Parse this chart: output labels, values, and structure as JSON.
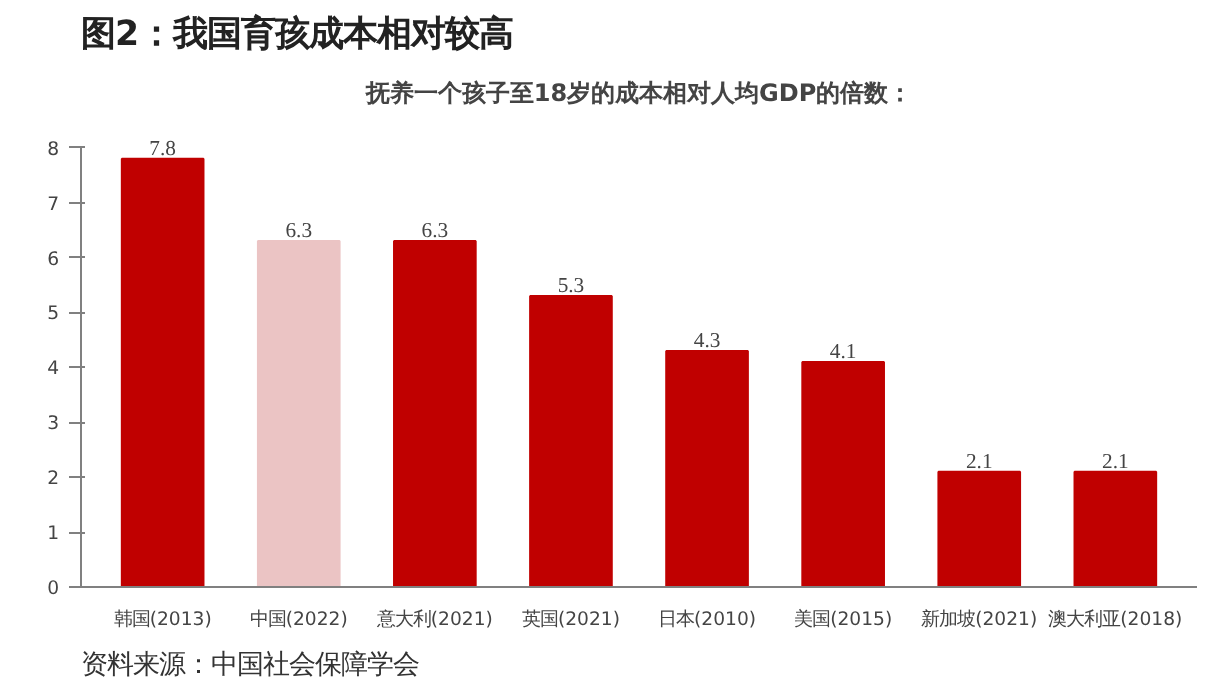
{
  "chart_data": {
    "type": "bar",
    "title": "图2：我国育孩成本相对较高",
    "subtitle": "抚养一个孩子至18岁的成本相对人均GDP的倍数：",
    "categories": [
      "韩国(2013)",
      "中国(2022)",
      "意大利(2021)",
      "英国(2021)",
      "日本(2010)",
      "美国(2015)",
      "新加坡(2021)",
      "澳大利亚(2018)"
    ],
    "values": [
      7.8,
      6.3,
      6.3,
      5.3,
      4.3,
      4.1,
      2.1,
      2.1
    ],
    "colors": [
      "#c00000",
      "#ebc4c4",
      "#c00000",
      "#c00000",
      "#c00000",
      "#c00000",
      "#c00000",
      "#c00000"
    ],
    "ylim": [
      0,
      8
    ],
    "yticks": [
      0,
      1,
      2,
      3,
      4,
      5,
      6,
      7,
      8
    ],
    "grid": false,
    "data_labels": true,
    "annotations": [
      "资料来源：中国社会保障学会"
    ]
  }
}
